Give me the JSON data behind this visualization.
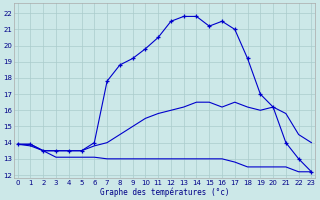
{
  "xlabel": "Graphe des températures (°c)",
  "bg_color": "#cce8e8",
  "line_color": "#0000cc",
  "grid_color": "#aacccc",
  "x_ticks": [
    0,
    1,
    2,
    3,
    4,
    5,
    6,
    7,
    8,
    9,
    10,
    11,
    12,
    13,
    14,
    15,
    16,
    17,
    18,
    19,
    20,
    21,
    22,
    23
  ],
  "y_ticks": [
    12,
    13,
    14,
    15,
    16,
    17,
    18,
    19,
    20,
    21,
    22
  ],
  "ylim": [
    11.8,
    22.6
  ],
  "xlim": [
    -0.3,
    23.3
  ],
  "series": [
    {
      "x": [
        0,
        1,
        2,
        3,
        4,
        5,
        6,
        7,
        8,
        9,
        10,
        11,
        12,
        13,
        14,
        15,
        16,
        17,
        18,
        19,
        20,
        21,
        22,
        23
      ],
      "y": [
        13.9,
        13.8,
        13.5,
        13.1,
        13.1,
        13.1,
        13.1,
        13.0,
        13.0,
        13.0,
        13.0,
        13.0,
        13.0,
        13.0,
        13.0,
        13.0,
        13.0,
        12.8,
        12.5,
        12.5,
        12.5,
        12.5,
        12.2,
        12.2
      ],
      "marker": false
    },
    {
      "x": [
        0,
        1,
        2,
        3,
        4,
        5,
        6,
        7,
        8,
        9,
        10,
        11,
        12,
        13,
        14,
        15,
        16,
        17,
        18,
        19,
        20,
        21,
        22,
        23
      ],
      "y": [
        13.9,
        13.9,
        13.5,
        13.5,
        13.5,
        13.5,
        13.8,
        14.0,
        14.5,
        15.0,
        15.5,
        15.8,
        16.0,
        16.2,
        16.5,
        16.5,
        16.2,
        16.5,
        16.2,
        16.0,
        16.2,
        15.8,
        14.5,
        14.0
      ],
      "marker": false
    },
    {
      "x": [
        0,
        1,
        2,
        3,
        4,
        5,
        6,
        7,
        8,
        9,
        10,
        11,
        12,
        13,
        14,
        15,
        16,
        17,
        18,
        19,
        20,
        21,
        22,
        23
      ],
      "y": [
        13.9,
        13.9,
        13.5,
        13.5,
        13.5,
        13.5,
        14.0,
        17.8,
        18.8,
        19.2,
        19.8,
        20.5,
        21.5,
        21.8,
        21.8,
        21.2,
        21.5,
        21.0,
        19.2,
        17.0,
        16.2,
        14.0,
        13.0,
        12.2
      ],
      "marker": true
    }
  ]
}
